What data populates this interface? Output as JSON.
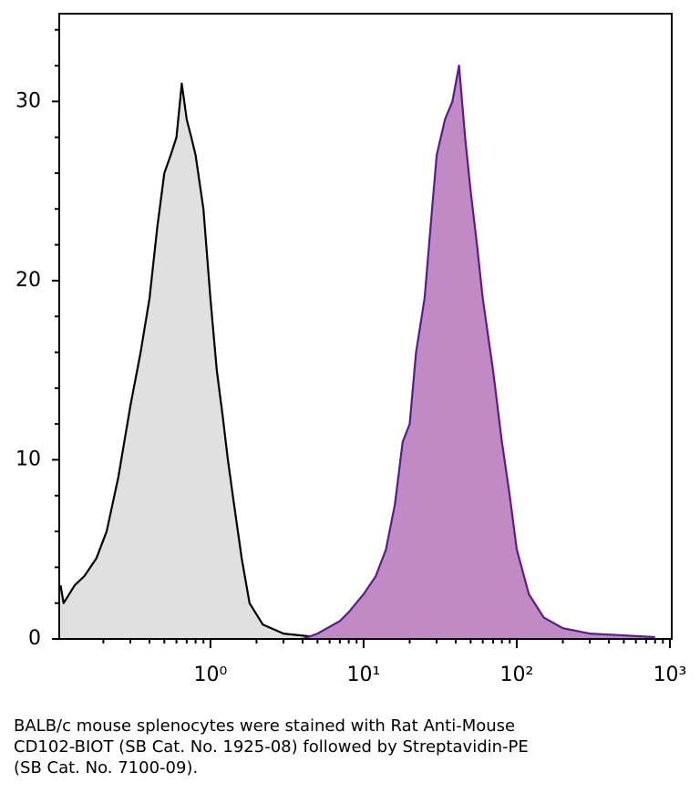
{
  "chart_data": {
    "type": "area",
    "log_x": true,
    "caption": [
      "BALB/c mouse splenocytes were stained with Rat Anti-Mouse",
      "CD102-BIOT (SB Cat. No. 1925-08) followed by Streptavidin-PE",
      "(SB Cat. No. 7100-09)."
    ],
    "xlim": [
      0.103,
      1028
    ],
    "ylim": [
      0,
      34.9
    ],
    "xticks": [
      {
        "value": 1,
        "label": "10⁰"
      },
      {
        "value": 10,
        "label": "10¹"
      },
      {
        "value": 100,
        "label": "10²"
      },
      {
        "value": 1000,
        "label": "10³"
      }
    ],
    "xminorticks": [
      0.2,
      0.3,
      0.4,
      0.5,
      0.6,
      0.7,
      0.8,
      0.9,
      2,
      3,
      4,
      5,
      6,
      7,
      8,
      9,
      20,
      30,
      40,
      50,
      60,
      70,
      80,
      90,
      200,
      300,
      400,
      500,
      600,
      700,
      800,
      900
    ],
    "yticks": [
      0,
      10,
      20,
      30
    ],
    "yminorticks": [
      2,
      4,
      6,
      8,
      12,
      14,
      16,
      18,
      22,
      24,
      26,
      28,
      32,
      34
    ],
    "series": [
      {
        "color": "#000000",
        "fill": "#e0e0e0",
        "x": [
          0.105,
          0.11,
          0.13,
          0.15,
          0.18,
          0.21,
          0.25,
          0.3,
          0.35,
          0.4,
          0.45,
          0.5,
          0.55,
          0.6,
          0.65,
          0.7,
          0.75,
          0.8,
          0.9,
          1.0,
          1.1,
          1.2,
          1.3,
          1.4,
          1.6,
          1.8,
          2.2,
          3,
          5,
          10
        ],
        "values": [
          3,
          2,
          3,
          3.5,
          4.5,
          6,
          9,
          13,
          16,
          19,
          23,
          26,
          27,
          28,
          31,
          29,
          28,
          27,
          24,
          19,
          15,
          12.5,
          10,
          8,
          4.5,
          2,
          0.8,
          0.3,
          0.1,
          0
        ]
      },
      {
        "color": "#5c1a8a",
        "fill": "#c08ac4",
        "x": [
          4,
          5,
          7,
          8,
          10,
          12,
          14,
          16,
          18,
          20,
          22,
          25,
          28,
          30,
          34,
          38,
          42,
          46,
          50,
          55,
          60,
          70,
          80,
          90,
          100,
          120,
          150,
          200,
          300,
          500,
          800
        ],
        "values": [
          0,
          0.3,
          1,
          1.5,
          2.5,
          3.5,
          5,
          7.5,
          11,
          12,
          16,
          19,
          24,
          27,
          29,
          30,
          32,
          28,
          25,
          22,
          19,
          15,
          11,
          8,
          5,
          2.5,
          1.2,
          0.6,
          0.3,
          0.2,
          0.1
        ]
      }
    ]
  }
}
